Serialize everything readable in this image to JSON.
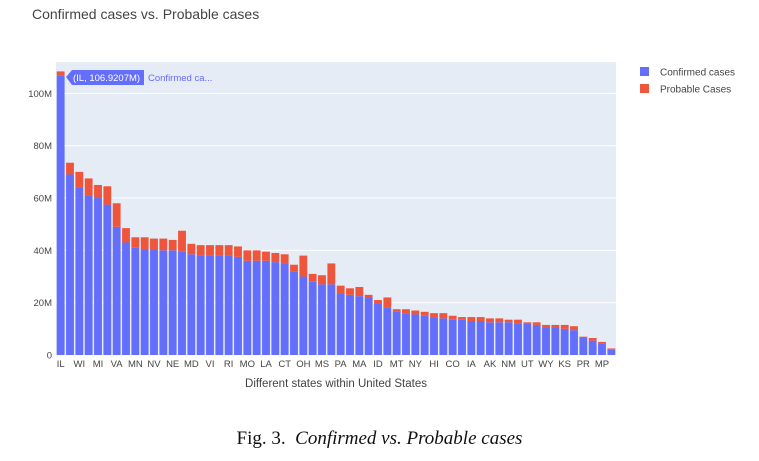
{
  "chart_data": {
    "type": "bar",
    "stacked": true,
    "title": "Confirmed cases vs. Probable cases",
    "xlabel": "Different states within United States",
    "ylabel": "",
    "ylim": [
      0,
      112
    ],
    "y_unit": "M",
    "y_ticks": [
      {
        "value": 0,
        "label": "0"
      },
      {
        "value": 20,
        "label": "20M"
      },
      {
        "value": 40,
        "label": "40M"
      },
      {
        "value": 60,
        "label": "60M"
      },
      {
        "value": 80,
        "label": "80M"
      },
      {
        "value": 100,
        "label": "100M"
      }
    ],
    "grid": true,
    "legend_position": "top-right",
    "categories": [
      "IL",
      "c2",
      "WI",
      "c4",
      "MI",
      "c6",
      "VA",
      "c8",
      "MN",
      "c10",
      "NV",
      "c12",
      "NE",
      "c14",
      "MD",
      "c16",
      "VI",
      "c18",
      "RI",
      "c20",
      "MO",
      "c22",
      "LA",
      "c24",
      "CT",
      "c26",
      "OH",
      "c28",
      "MS",
      "c30",
      "PA",
      "c32",
      "MA",
      "c34",
      "ID",
      "c36",
      "MT",
      "c38",
      "NY",
      "c40",
      "HI",
      "c42",
      "CO",
      "c44",
      "IA",
      "c46",
      "AK",
      "c48",
      "NM",
      "c50",
      "UT",
      "c52",
      "WY",
      "c54",
      "KS",
      "c56",
      "PR",
      "c58",
      "MP",
      "c60"
    ],
    "tick_labels": [
      "IL",
      "WI",
      "MI",
      "VA",
      "MN",
      "NV",
      "NE",
      "MD",
      "VI",
      "RI",
      "MO",
      "LA",
      "CT",
      "OH",
      "MS",
      "PA",
      "MA",
      "ID",
      "MT",
      "NY",
      "HI",
      "CO",
      "IA",
      "AK",
      "NM",
      "UT",
      "WY",
      "KS",
      "PR",
      "MP"
    ],
    "series": [
      {
        "name": "Confirmed cases",
        "color": "#636efa",
        "values": [
          106.9,
          69,
          64,
          61,
          60,
          57.5,
          49,
          43,
          41,
          40.5,
          40.5,
          40,
          40,
          39.5,
          38.5,
          38,
          38,
          38,
          38,
          37.5,
          36,
          36,
          36,
          35.5,
          35,
          32,
          30,
          28,
          27,
          27,
          23.5,
          23,
          22.5,
          22,
          19.5,
          18,
          16.5,
          16,
          15.5,
          15,
          14.5,
          14,
          13.5,
          13.5,
          13,
          13,
          12.5,
          12.5,
          12.5,
          12,
          12,
          11.5,
          10.5,
          10.5,
          10,
          9.5,
          6.5,
          5.5,
          4.5,
          2
        ]
      },
      {
        "name": "Probable Cases",
        "color": "#ef553b",
        "values": [
          1.5,
          4.5,
          6,
          6.5,
          5,
          7,
          9,
          5.5,
          4,
          4.5,
          4,
          4.5,
          4,
          8,
          4,
          4,
          4,
          4,
          4,
          4,
          4,
          4,
          3.5,
          3.5,
          3.5,
          2.5,
          8,
          3,
          3.5,
          8,
          3,
          2.5,
          3.5,
          1,
          1.5,
          4,
          1,
          1.5,
          1.5,
          1.5,
          1.5,
          2,
          1.5,
          1,
          1.5,
          1.5,
          1.5,
          1.5,
          1,
          1.5,
          0.5,
          1,
          1,
          1,
          1.5,
          1.5,
          0.5,
          1,
          0.5,
          0.5
        ]
      }
    ],
    "hover_label": {
      "text": "(IL, 106.9207M)",
      "trace_text": "Confirmed ca..."
    }
  },
  "caption": {
    "prefix": "Fig. 3.",
    "title": "Confirmed vs. Probable cases"
  }
}
